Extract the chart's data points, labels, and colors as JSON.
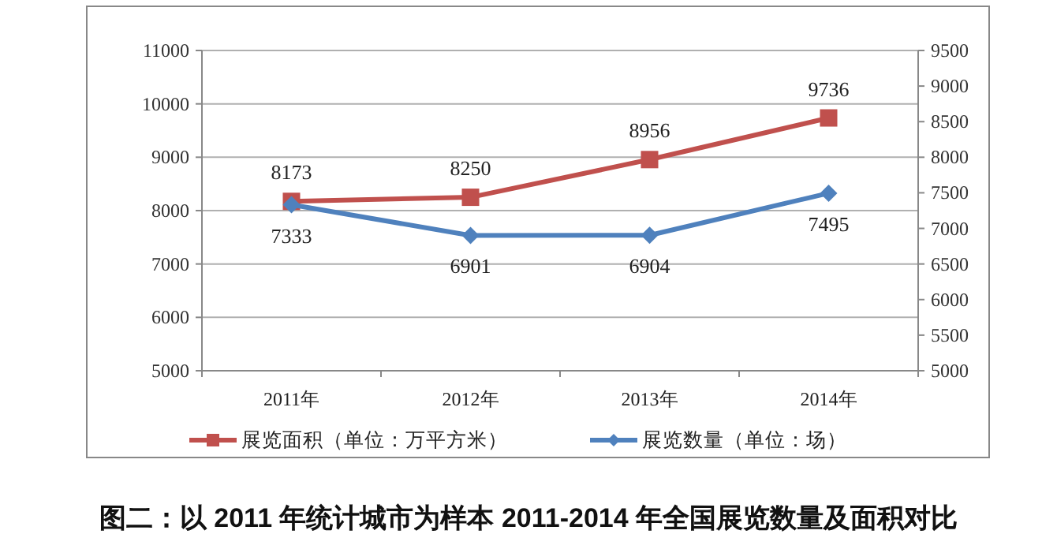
{
  "chart_data": {
    "type": "line",
    "title": "图二：以 2011 年统计城市为样本 2011-2014 年全国展览数量及面积对比",
    "categories": [
      "2011年",
      "2012年",
      "2013年",
      "2014年"
    ],
    "series": [
      {
        "name": "展览面积（单位：万平方米）",
        "color": "#c0504d",
        "values": [
          8173,
          8250,
          8956,
          9736
        ],
        "marker": "square"
      },
      {
        "name": "展览数量（单位：场）",
        "color": "#4f81bd",
        "values": [
          7333,
          6901,
          6904,
          7495
        ],
        "axis": "y2",
        "marker": "diamond"
      }
    ],
    "ylim": [
      5000,
      11000
    ],
    "yticks": [
      5000,
      6000,
      7000,
      8000,
      9000,
      10000,
      11000
    ],
    "y2lim": [
      5000,
      9500
    ],
    "y2ticks": [
      5000,
      5500,
      6000,
      6500,
      7000,
      7500,
      8000,
      8500,
      9000,
      9500
    ],
    "grid": "y",
    "legend": "bottom",
    "data_labels": true,
    "line_style": "solid"
  }
}
